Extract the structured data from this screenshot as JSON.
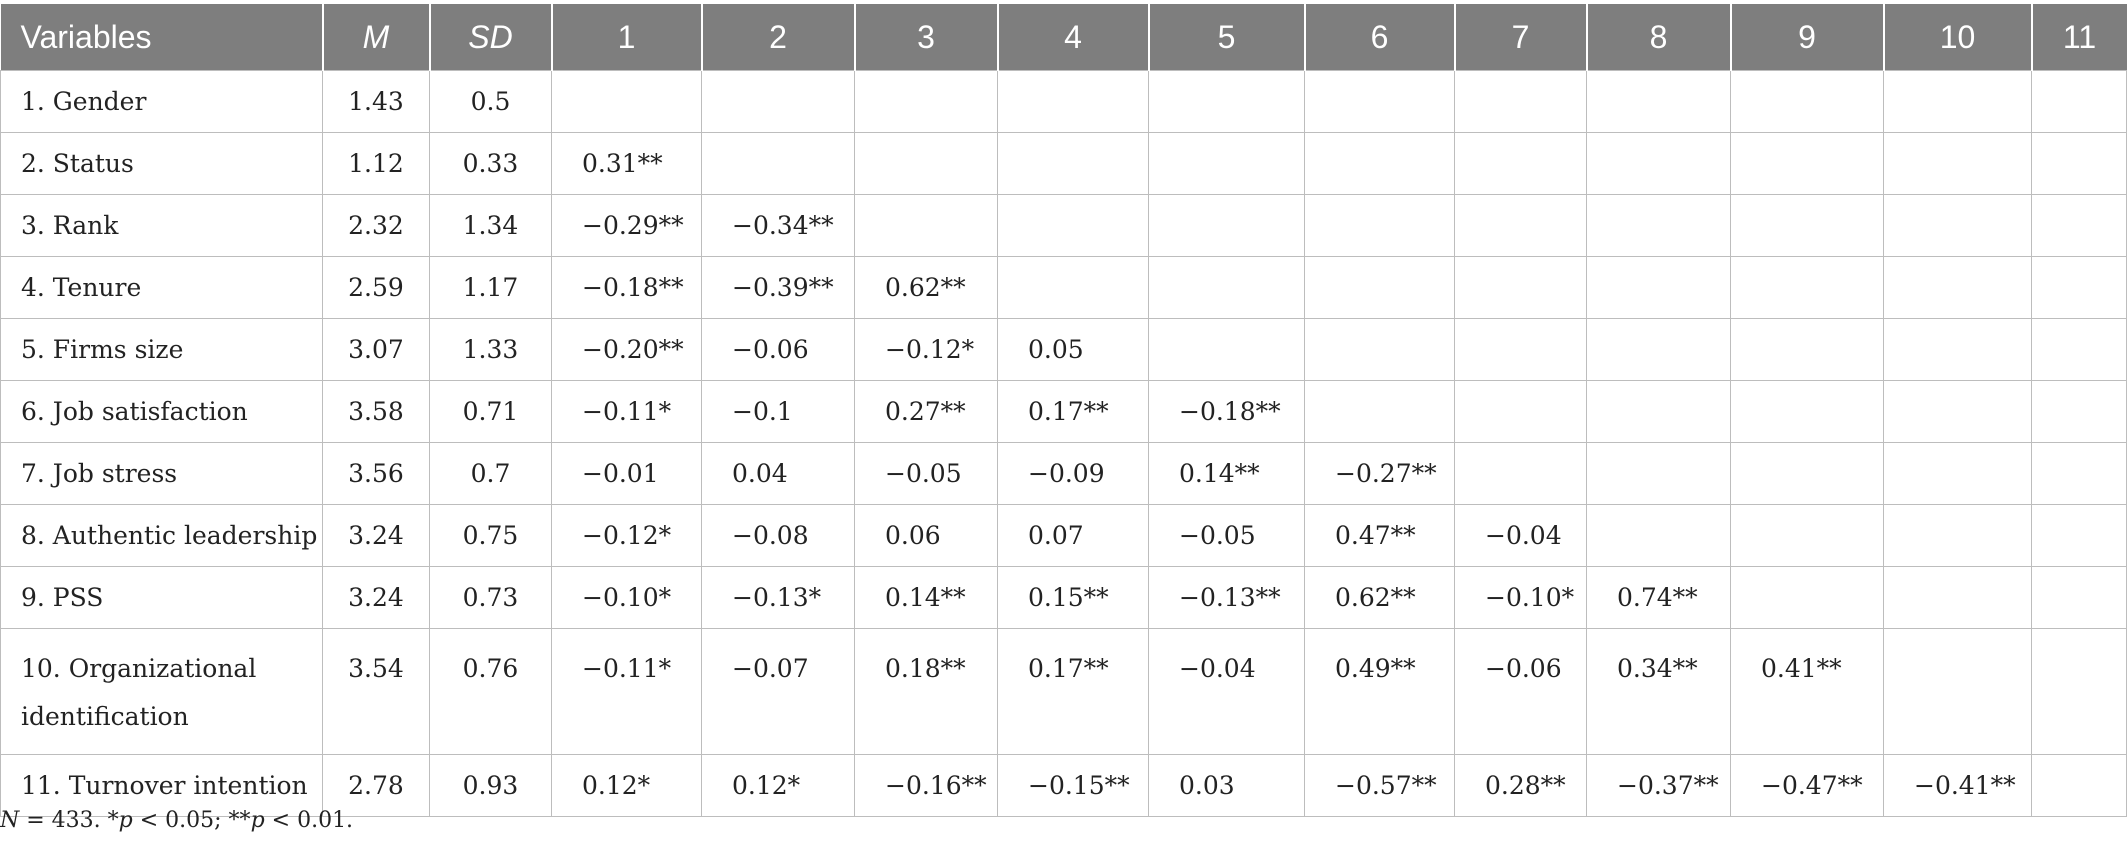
{
  "table": {
    "headers": [
      "Variables",
      "M",
      "SD",
      "1",
      "2",
      "3",
      "4",
      "5",
      "6",
      "7",
      "8",
      "9",
      "10",
      "11"
    ],
    "rows": [
      {
        "variable": "1. Gender",
        "m": "1.43",
        "sd": "0.5",
        "correlations": []
      },
      {
        "variable": "2. Status",
        "m": "1.12",
        "sd": "0.33",
        "correlations": [
          "0.31**"
        ]
      },
      {
        "variable": "3. Rank",
        "m": "2.32",
        "sd": "1.34",
        "correlations": [
          "−0.29**",
          "−0.34**"
        ]
      },
      {
        "variable": "4. Tenure",
        "m": "2.59",
        "sd": "1.17",
        "correlations": [
          "−0.18**",
          "−0.39**",
          "0.62**"
        ]
      },
      {
        "variable": "5. Firms size",
        "m": "3.07",
        "sd": "1.33",
        "correlations": [
          "−0.20**",
          "−0.06",
          "−0.12*",
          "0.05"
        ]
      },
      {
        "variable": "6. Job satisfaction",
        "m": "3.58",
        "sd": "0.71",
        "correlations": [
          "−0.11*",
          "−0.1",
          "0.27**",
          "0.17**",
          "−0.18**"
        ]
      },
      {
        "variable": "7. Job stress",
        "m": "3.56",
        "sd": "0.7",
        "correlations": [
          "−0.01",
          "0.04",
          "−0.05",
          "−0.09",
          "0.14**",
          "−0.27**"
        ]
      },
      {
        "variable": "8. Authentic leadership",
        "m": "3.24",
        "sd": "0.75",
        "correlations": [
          "−0.12*",
          "−0.08",
          "0.06",
          "0.07",
          "−0.05",
          "0.47**",
          "−0.04"
        ]
      },
      {
        "variable": "9. PSS",
        "m": "3.24",
        "sd": "0.73",
        "correlations": [
          "−0.10*",
          "−0.13*",
          "0.14**",
          "0.15**",
          "−0.13**",
          "0.62**",
          "−0.10*",
          "0.74**"
        ]
      },
      {
        "variable": "10. Organizational identification",
        "m": "3.54",
        "sd": "0.76",
        "correlations": [
          "−0.11*",
          "−0.07",
          "0.18**",
          "0.17**",
          "−0.04",
          "0.49**",
          "−0.06",
          "0.34**",
          "0.41**"
        ]
      },
      {
        "variable": "11. Turnover intention",
        "m": "2.78",
        "sd": "0.93",
        "correlations": [
          "0.12*",
          "0.12*",
          "−0.16**",
          "−0.15**",
          "0.03",
          "−0.57**",
          "0.28**",
          "−0.37**",
          "−0.47**",
          "−0.41**"
        ]
      }
    ]
  },
  "note": {
    "n_label": "N",
    "n_value": " = 433. *",
    "p1_label": "p",
    "p1_value": " < 0.05; **",
    "p2_label": "p",
    "p2_value": " < 0.01."
  }
}
